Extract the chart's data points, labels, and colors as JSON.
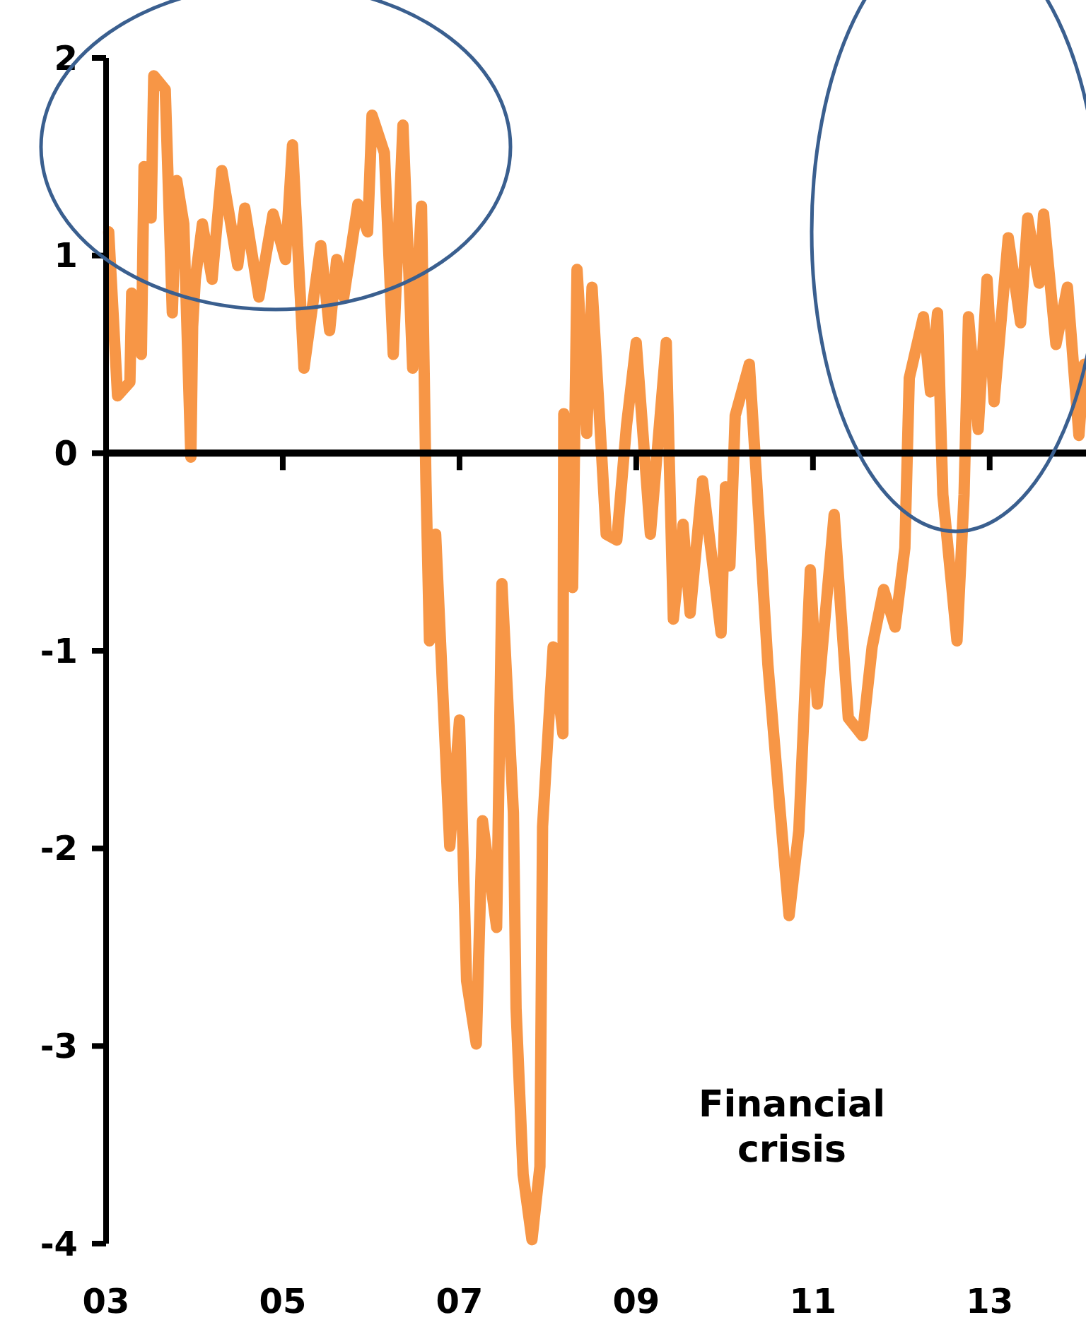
{
  "chart_data": {
    "type": "line",
    "xlim": [
      2003,
      2014.09
    ],
    "ylim": [
      -4,
      2
    ],
    "xticks": [
      {
        "value": 2003,
        "label": "03"
      },
      {
        "value": 2005,
        "label": "05"
      },
      {
        "value": 2007,
        "label": "07"
      },
      {
        "value": 2009,
        "label": "09"
      },
      {
        "value": 2011,
        "label": "11"
      },
      {
        "value": 2013,
        "label": "13"
      }
    ],
    "yticks": [
      -4,
      -3,
      -2,
      -1,
      0,
      1,
      2
    ],
    "marker": "none",
    "line_style": "solid",
    "annotations": [
      "Financial crisis"
    ],
    "series": [
      {
        "color": "#f79646",
        "x": [
          2003.03,
          2003.13,
          2003.27,
          2003.29,
          2003.4,
          2003.43,
          2003.51,
          2003.54,
          2003.67,
          2003.75,
          2003.8,
          2003.88,
          2003.96,
          2003.98,
          2004.01,
          2004.09,
          2004.2,
          2004.31,
          2004.49,
          2004.57,
          2004.73,
          2004.89,
          2005.03,
          2005.11,
          2005.24,
          2005.43,
          2005.53,
          2005.61,
          2005.69,
          2005.85,
          2005.96,
          2006.01,
          2006.15,
          2006.25,
          2006.36,
          2006.47,
          2006.57,
          2006.62,
          2006.66,
          2006.73,
          2006.89,
          2007.0,
          2007.08,
          2007.19,
          2007.26,
          2007.42,
          2007.48,
          2007.61,
          2007.64,
          2007.72,
          2007.82,
          2007.91,
          2007.94,
          2008.06,
          2008.17,
          2008.18,
          2008.28,
          2008.33,
          2008.44,
          2008.5,
          2008.66,
          2008.78,
          2008.89,
          2009.0,
          2009.16,
          2009.34,
          2009.42,
          2009.53,
          2009.61,
          2009.75,
          2009.96,
          2010.01,
          2010.06,
          2010.12,
          2010.28,
          2010.36,
          2010.49,
          2010.6,
          2010.73,
          2010.84,
          2010.97,
          2011.05,
          2011.24,
          2011.4,
          2011.56,
          2011.67,
          2011.8,
          2011.93,
          2012.04,
          2012.09,
          2012.25,
          2012.33,
          2012.41,
          2012.47,
          2012.63,
          2012.71,
          2012.76,
          2012.87,
          2012.97,
          2013.05,
          2013.21,
          2013.35,
          2013.43,
          2013.56,
          2013.61,
          2013.75,
          2013.88,
          2014.01,
          2014.07
        ],
        "values": [
          1.12,
          0.29,
          0.36,
          0.81,
          0.5,
          1.45,
          1.19,
          1.91,
          1.84,
          0.71,
          1.38,
          1.16,
          -0.02,
          0.64,
          0.88,
          1.16,
          0.88,
          1.43,
          0.95,
          1.24,
          0.79,
          1.21,
          0.98,
          1.56,
          0.43,
          1.05,
          0.62,
          0.98,
          0.79,
          1.26,
          1.12,
          1.71,
          1.52,
          0.5,
          1.66,
          0.43,
          1.25,
          -0.14,
          -0.95,
          -0.41,
          -1.99,
          -1.35,
          -2.67,
          -2.99,
          -1.86,
          -2.4,
          -0.66,
          -1.82,
          -2.81,
          -3.65,
          -3.98,
          -3.61,
          -1.89,
          -0.98,
          -1.42,
          0.2,
          -0.68,
          0.93,
          0.1,
          0.84,
          -0.41,
          -0.44,
          0.14,
          0.56,
          -0.41,
          0.56,
          -0.84,
          -0.36,
          -0.81,
          -0.14,
          -0.91,
          -0.17,
          -0.57,
          0.19,
          0.45,
          -0.12,
          -1.07,
          -1.66,
          -2.34,
          -1.91,
          -0.59,
          -1.27,
          -0.31,
          -1.34,
          -1.43,
          -0.98,
          -0.69,
          -0.88,
          -0.48,
          0.38,
          0.69,
          0.31,
          0.71,
          -0.21,
          -0.95,
          -0.21,
          0.69,
          0.12,
          0.88,
          0.26,
          1.09,
          0.66,
          1.19,
          0.86,
          1.21,
          0.55,
          0.84,
          0.09,
          0.45
        ]
      }
    ]
  }
}
